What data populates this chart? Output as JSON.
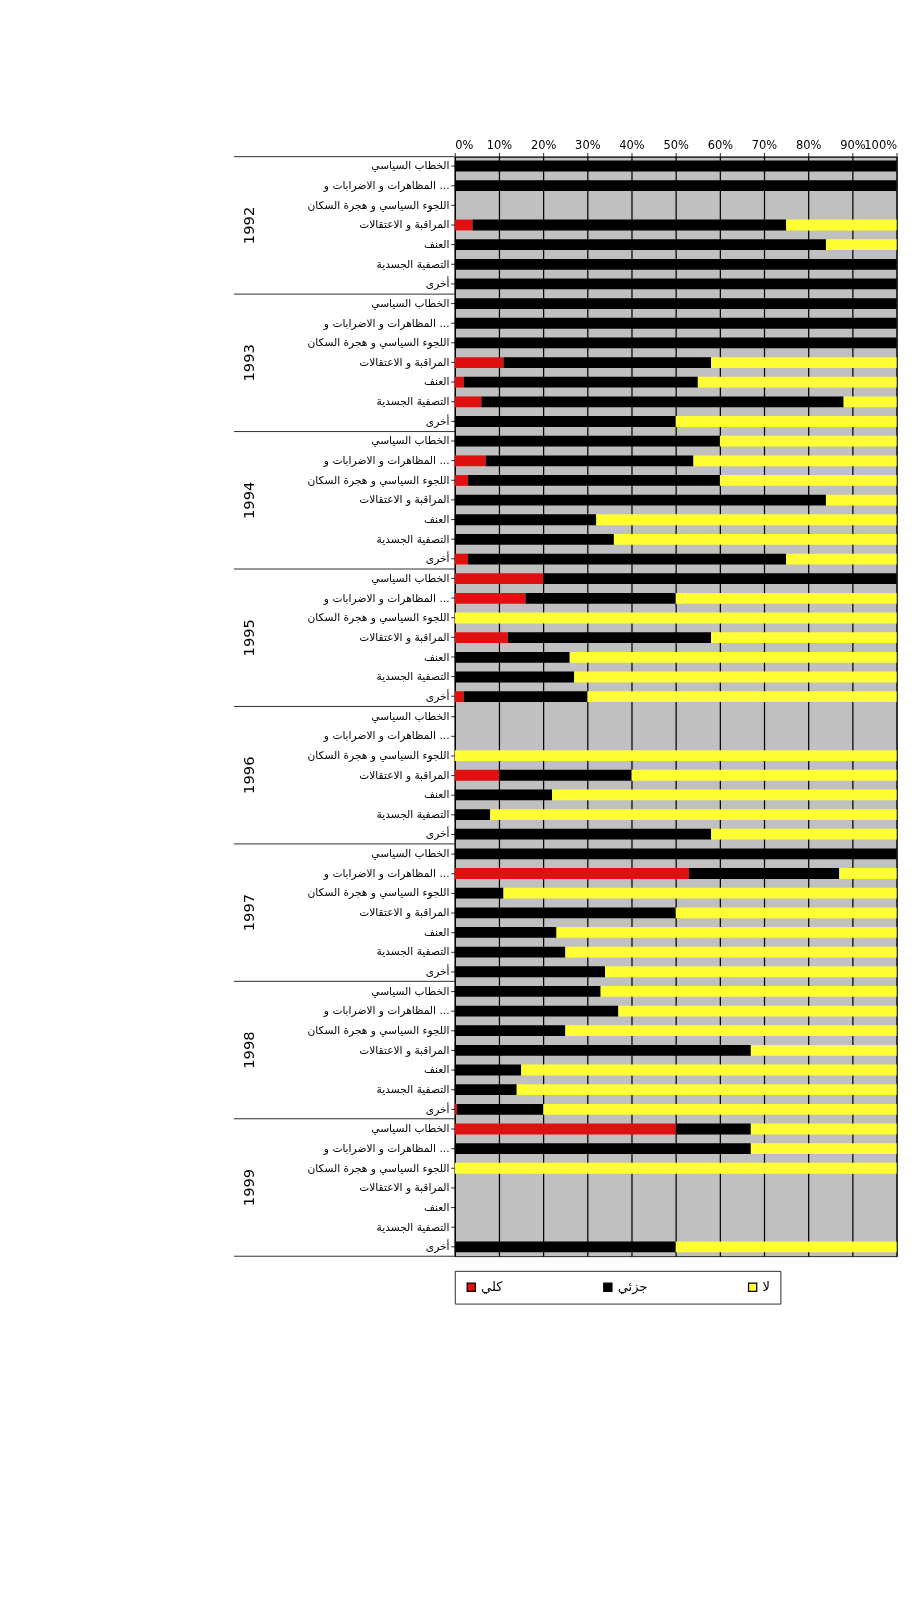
{
  "chart_data": {
    "type": "bar",
    "orientation": "horizontal",
    "stacked": true,
    "categories": [
      "الخطاب السياسي",
      "المظاهرات و الاضرابات و ...",
      "اللجوء السياسي و هجرة السكان",
      "المراقبة و الاعتقالات",
      "العنف",
      "التصفية الجسدية",
      "أخرى",
      "الخطاب السياسي",
      "المظاهرات و الاضرابات و ...",
      "اللجوء السياسي و هجرة السكان",
      "المراقبة و الاعتقالات",
      "العنف",
      "التصفية الجسدية",
      "أخرى",
      "الخطاب السياسي",
      "المظاهرات و الاضرابات و ...",
      "اللجوء السياسي و هجرة السكان",
      "المراقبة و الاعتقالات",
      "العنف",
      "التصفية الجسدية",
      "أخرى",
      "الخطاب السياسي",
      "المظاهرات و الاضرابات و ...",
      "اللجوء السياسي و هجرة السكان",
      "المراقبة و الاعتقالات",
      "العنف",
      "التصفية الجسدية",
      "أخرى",
      "الخطاب السياسي",
      "المظاهرات و الاضرابات و ...",
      "اللجوء السياسي و هجرة السكان",
      "المراقبة و الاعتقالات",
      "العنف",
      "التصفية الجسدية",
      "أخرى",
      "الخطاب السياسي",
      "المظاهرات و الاضرابات و ...",
      "اللجوء السياسي و هجرة السكان",
      "المراقبة و الاعتقالات",
      "العنف",
      "التصفية الجسدية",
      "أخرى",
      "الخطاب السياسي",
      "المظاهرات و الاضرابات و ...",
      "اللجوء السياسي و هجرة السكان",
      "المراقبة و الاعتقالات",
      "العنف",
      "التصفية الجسدية",
      "أخرى",
      "الخطاب السياسي",
      "المظاهرات و الاضرابات و ...",
      "اللجوء السياسي و هجرة السكان",
      "المراقبة و الاعتقالات",
      "العنف",
      "التصفية الجسدية",
      "أخرى"
    ],
    "series": [
      {
        "name": "كلي",
        "color": "#e01010",
        "values": [
          0,
          0,
          null,
          4,
          0,
          0,
          0,
          0,
          0,
          0,
          11,
          2,
          6,
          0,
          0,
          7,
          3,
          0,
          0,
          0,
          3,
          20,
          16,
          0,
          12,
          0,
          0,
          2,
          null,
          null,
          0,
          10,
          0,
          0,
          0,
          0,
          53,
          0,
          0,
          0,
          0,
          0,
          0,
          0,
          0,
          0,
          0,
          0,
          0.5,
          50,
          0,
          0,
          null,
          null,
          null,
          0
        ]
      },
      {
        "name": "جزئي",
        "color": "#000000",
        "values": [
          100,
          100,
          null,
          71,
          84,
          100,
          100,
          100,
          100,
          100,
          47,
          53,
          82,
          50,
          60,
          47,
          57,
          84,
          32,
          36,
          72,
          80,
          34,
          0,
          46,
          26,
          27,
          28,
          null,
          null,
          0,
          30,
          22,
          8,
          58,
          100,
          34,
          11,
          50,
          23,
          25,
          34,
          33,
          37,
          25,
          67,
          15,
          14,
          19.5,
          17,
          67,
          0,
          null,
          null,
          null,
          50
        ]
      },
      {
        "name": "لا",
        "color": "#ffff33",
        "values": [
          0,
          0,
          null,
          25,
          16,
          0,
          0,
          0,
          0,
          0,
          42,
          45,
          12,
          50,
          40,
          46,
          40,
          16,
          68,
          64,
          25,
          0,
          50,
          100,
          42,
          74,
          73,
          70,
          null,
          null,
          100,
          60,
          78,
          92,
          42,
          0,
          13,
          89,
          50,
          77,
          75,
          66,
          67,
          63,
          75,
          33,
          85,
          86,
          80,
          33,
          33,
          100,
          null,
          null,
          null,
          50
        ]
      }
    ],
    "xlim": [
      0,
      100
    ],
    "xticks": [
      {
        "value": 0,
        "label": "0%"
      },
      {
        "value": 10,
        "label": "10%"
      },
      {
        "value": 20,
        "label": "20%"
      },
      {
        "value": 30,
        "label": "30%"
      },
      {
        "value": 40,
        "label": "40%"
      },
      {
        "value": 50,
        "label": "50%"
      },
      {
        "value": 60,
        "label": "60%"
      },
      {
        "value": 70,
        "label": "70%"
      },
      {
        "value": 80,
        "label": "80%"
      },
      {
        "value": 90,
        "label": "90%"
      },
      {
        "value": 100,
        "label": "100%"
      }
    ],
    "annotations": [
      "1992",
      "1993",
      "1994",
      "1995",
      "1996",
      "1997",
      "1998",
      "1999"
    ],
    "grid": "x",
    "legend": "bottom"
  }
}
